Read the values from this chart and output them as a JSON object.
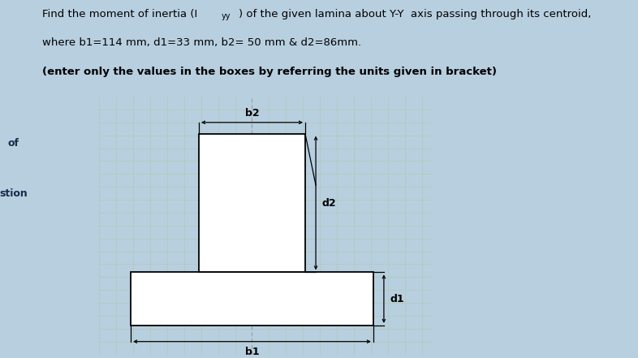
{
  "title_line1": "Find the moment of inertia (Iᵧᵧ) of the given lamina about Y-Y  axis passing through its centroid,",
  "title_line2": "where b1=114 mm, d1=33 mm, b2= 50 mm & d2=86mm.",
  "title_line3": "(enter only the values in the boxes by referring the units given in bracket)",
  "b1": 114,
  "d1": 33,
  "b2": 50,
  "d2": 86,
  "left_label1": "of",
  "left_label2": "stion",
  "sidebar_color": "#8fa8c8",
  "main_bg": "#b8cfe0",
  "diagram_bg": "#c8d8b8",
  "shape_fill": "#ffffff",
  "shape_edge": "#000000",
  "label_fontsize": 9,
  "title_fontsize": 9.5
}
